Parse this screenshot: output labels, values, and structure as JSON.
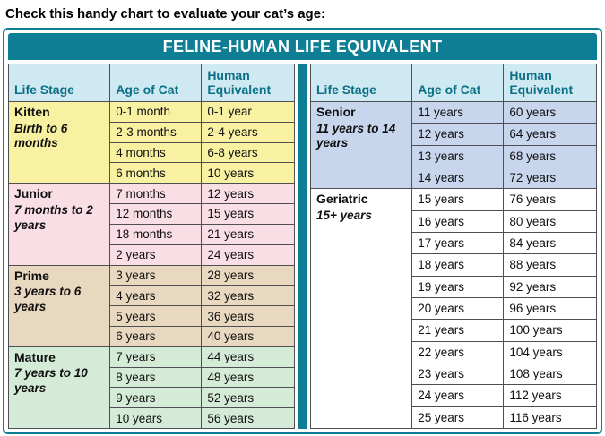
{
  "heading": "Check this handy chart to evaluate your cat’s age:",
  "chart_data": {
    "type": "table",
    "title": "FELINE-HUMAN LIFE EQUIVALENT",
    "columns": [
      "Life Stage",
      "Age of Cat",
      "Human Equivalent"
    ],
    "colors": {
      "frame_teal": "#0e7e95",
      "column_header_bg": "#cfe9f2",
      "column_header_text": "#0b7086",
      "grid_line": "#4d4f52"
    },
    "tables": [
      {
        "groups": [
          {
            "stage": "Kitten",
            "range": "Birth to 6 months",
            "bg": "#f7f1a1",
            "rows": [
              [
                "0-1 month",
                "0-1 year"
              ],
              [
                "2-3 months",
                "2-4 years"
              ],
              [
                "4 months",
                "6-8 years"
              ],
              [
                "6 months",
                "10 years"
              ]
            ]
          },
          {
            "stage": "Junior",
            "range": "7 months to 2 years",
            "bg": "#fadee5",
            "rows": [
              [
                "7 months",
                "12 years"
              ],
              [
                "12 months",
                "15 years"
              ],
              [
                "18 months",
                "21 years"
              ],
              [
                "2 years",
                "24 years"
              ]
            ]
          },
          {
            "stage": "Prime",
            "range": "3 years to 6 years",
            "bg": "#e8d8bf",
            "rows": [
              [
                "3 years",
                "28 years"
              ],
              [
                "4 years",
                "32 years"
              ],
              [
                "5 years",
                "36 years"
              ],
              [
                "6 years",
                "40 years"
              ]
            ]
          },
          {
            "stage": "Mature",
            "range": "7 years to 10 years",
            "bg": "#d4ebd8",
            "rows": [
              [
                "7 years",
                "44 years"
              ],
              [
                "8 years",
                "48 years"
              ],
              [
                "9 years",
                "52 years"
              ],
              [
                "10 years",
                "56 years"
              ]
            ]
          }
        ]
      },
      {
        "groups": [
          {
            "stage": "Senior",
            "range": "11 years to 14 years",
            "bg": "#c7d5ed",
            "rows": [
              [
                "11 years",
                "60 years"
              ],
              [
                "12 years",
                "64 years"
              ],
              [
                "13 years",
                "68 years"
              ],
              [
                "14 years",
                "72 years"
              ]
            ]
          },
          {
            "stage": "Geriatric",
            "range": "15+ years",
            "bg": "#ffffff",
            "rows": [
              [
                "15 years",
                "76 years"
              ],
              [
                "16 years",
                "80 years"
              ],
              [
                "17 years",
                "84 years"
              ],
              [
                "18 years",
                "88 years"
              ],
              [
                "19 years",
                "92 years"
              ],
              [
                "20 years",
                "96 years"
              ],
              [
                "21 years",
                "100 years"
              ],
              [
                "22 years",
                "104 years"
              ],
              [
                "23 years",
                "108 years"
              ],
              [
                "24 years",
                "112 years"
              ],
              [
                "25 years",
                "116 years"
              ]
            ]
          }
        ]
      }
    ]
  }
}
